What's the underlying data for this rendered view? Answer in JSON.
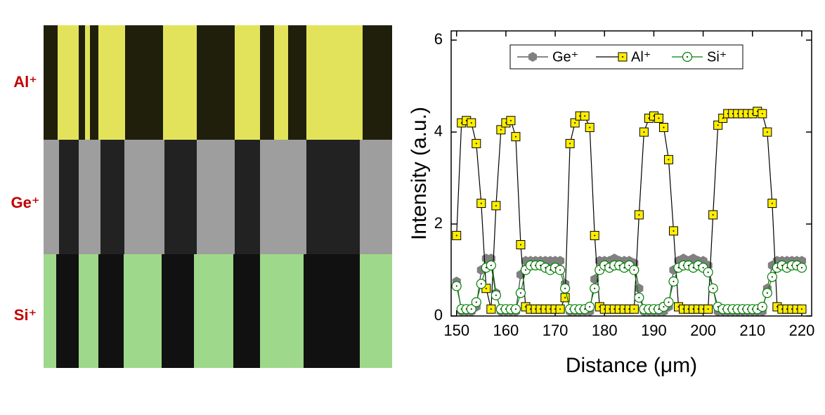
{
  "image_panel": {
    "labels": [
      "Al⁺",
      "Ge⁺",
      "Si⁺"
    ]
  },
  "chart_data": {
    "type": "line",
    "xlabel": "Distance (μm)",
    "ylabel": "Intensity (a.u.)",
    "xlim": [
      148.9,
      222
    ],
    "ylim": [
      0,
      6.2
    ],
    "xticks": [
      150,
      160,
      170,
      180,
      190,
      200,
      210,
      220
    ],
    "yticks": [
      0,
      2,
      4,
      6
    ],
    "legend": "top",
    "x": [
      150,
      151,
      152,
      153,
      154,
      155,
      156,
      157,
      158,
      159,
      160,
      161,
      162,
      163,
      164,
      165,
      166,
      167,
      168,
      169,
      170,
      171,
      172,
      173,
      174,
      175,
      176,
      177,
      178,
      179,
      180,
      181,
      182,
      183,
      184,
      185,
      186,
      187,
      188,
      189,
      190,
      191,
      192,
      193,
      194,
      195,
      196,
      197,
      198,
      199,
      200,
      201,
      202,
      203,
      204,
      205,
      206,
      207,
      208,
      209,
      210,
      211,
      212,
      213,
      214,
      215,
      216,
      217,
      218,
      219,
      220
    ],
    "series": [
      {
        "name": "Ge⁺",
        "color": "#808080",
        "line_color": "#404040",
        "marker": "hexagon",
        "values": [
          0.75,
          0.1,
          0.1,
          0.1,
          0.2,
          1.0,
          1.25,
          1.25,
          0.5,
          0.1,
          0.1,
          0.1,
          0.1,
          0.9,
          1.2,
          1.2,
          1.2,
          1.2,
          1.2,
          1.2,
          1.2,
          1.2,
          0.7,
          0.1,
          0.1,
          0.1,
          0.1,
          0.1,
          0.8,
          1.2,
          1.2,
          1.2,
          1.25,
          1.2,
          1.2,
          1.2,
          1.15,
          0.6,
          0.1,
          0.1,
          0.1,
          0.1,
          0.1,
          0.2,
          1.0,
          1.2,
          1.25,
          1.2,
          1.25,
          1.2,
          1.2,
          1.1,
          0.6,
          0.1,
          0.1,
          0.1,
          0.1,
          0.1,
          0.1,
          0.1,
          0.1,
          0.1,
          0.1,
          0.6,
          1.1,
          1.2,
          1.2,
          1.2,
          1.2,
          1.2,
          1.2
        ]
      },
      {
        "name": "Al⁺",
        "color": "#ffee00",
        "line_color": "#000000",
        "marker": "square",
        "values": [
          1.75,
          4.2,
          4.25,
          4.2,
          3.75,
          2.45,
          0.6,
          0.15,
          2.4,
          4.05,
          4.2,
          4.25,
          3.9,
          1.55,
          0.2,
          0.15,
          0.15,
          0.15,
          0.15,
          0.15,
          0.15,
          0.15,
          0.4,
          3.75,
          4.2,
          4.35,
          4.35,
          4.1,
          1.75,
          0.2,
          0.15,
          0.15,
          0.15,
          0.15,
          0.15,
          0.15,
          0.15,
          2.2,
          4.0,
          4.3,
          4.35,
          4.3,
          4.1,
          3.4,
          1.85,
          0.2,
          0.15,
          0.15,
          0.15,
          0.15,
          0.15,
          0.15,
          2.2,
          4.15,
          4.3,
          4.4,
          4.4,
          4.4,
          4.4,
          4.4,
          4.4,
          4.45,
          4.4,
          4.0,
          2.45,
          0.2,
          0.15,
          0.15,
          0.15,
          0.15,
          0.15
        ]
      },
      {
        "name": "Si⁺",
        "color": "#ffffff",
        "line_color": "#008000",
        "marker": "circle",
        "values": [
          0.65,
          0.15,
          0.15,
          0.15,
          0.3,
          0.7,
          1.05,
          1.1,
          0.45,
          0.15,
          0.15,
          0.15,
          0.15,
          0.5,
          1.0,
          1.1,
          1.1,
          1.1,
          1.05,
          1.0,
          1.05,
          1.0,
          0.6,
          0.15,
          0.15,
          0.15,
          0.15,
          0.2,
          0.6,
          1.0,
          1.1,
          1.05,
          1.1,
          1.1,
          1.05,
          1.1,
          1.0,
          0.4,
          0.15,
          0.15,
          0.15,
          0.15,
          0.2,
          0.3,
          0.75,
          1.05,
          1.1,
          1.1,
          1.05,
          1.1,
          1.05,
          0.95,
          0.6,
          0.2,
          0.15,
          0.15,
          0.15,
          0.15,
          0.15,
          0.15,
          0.15,
          0.15,
          0.2,
          0.5,
          0.85,
          1.05,
          1.1,
          1.05,
          1.1,
          1.1,
          1.05
        ]
      }
    ]
  }
}
